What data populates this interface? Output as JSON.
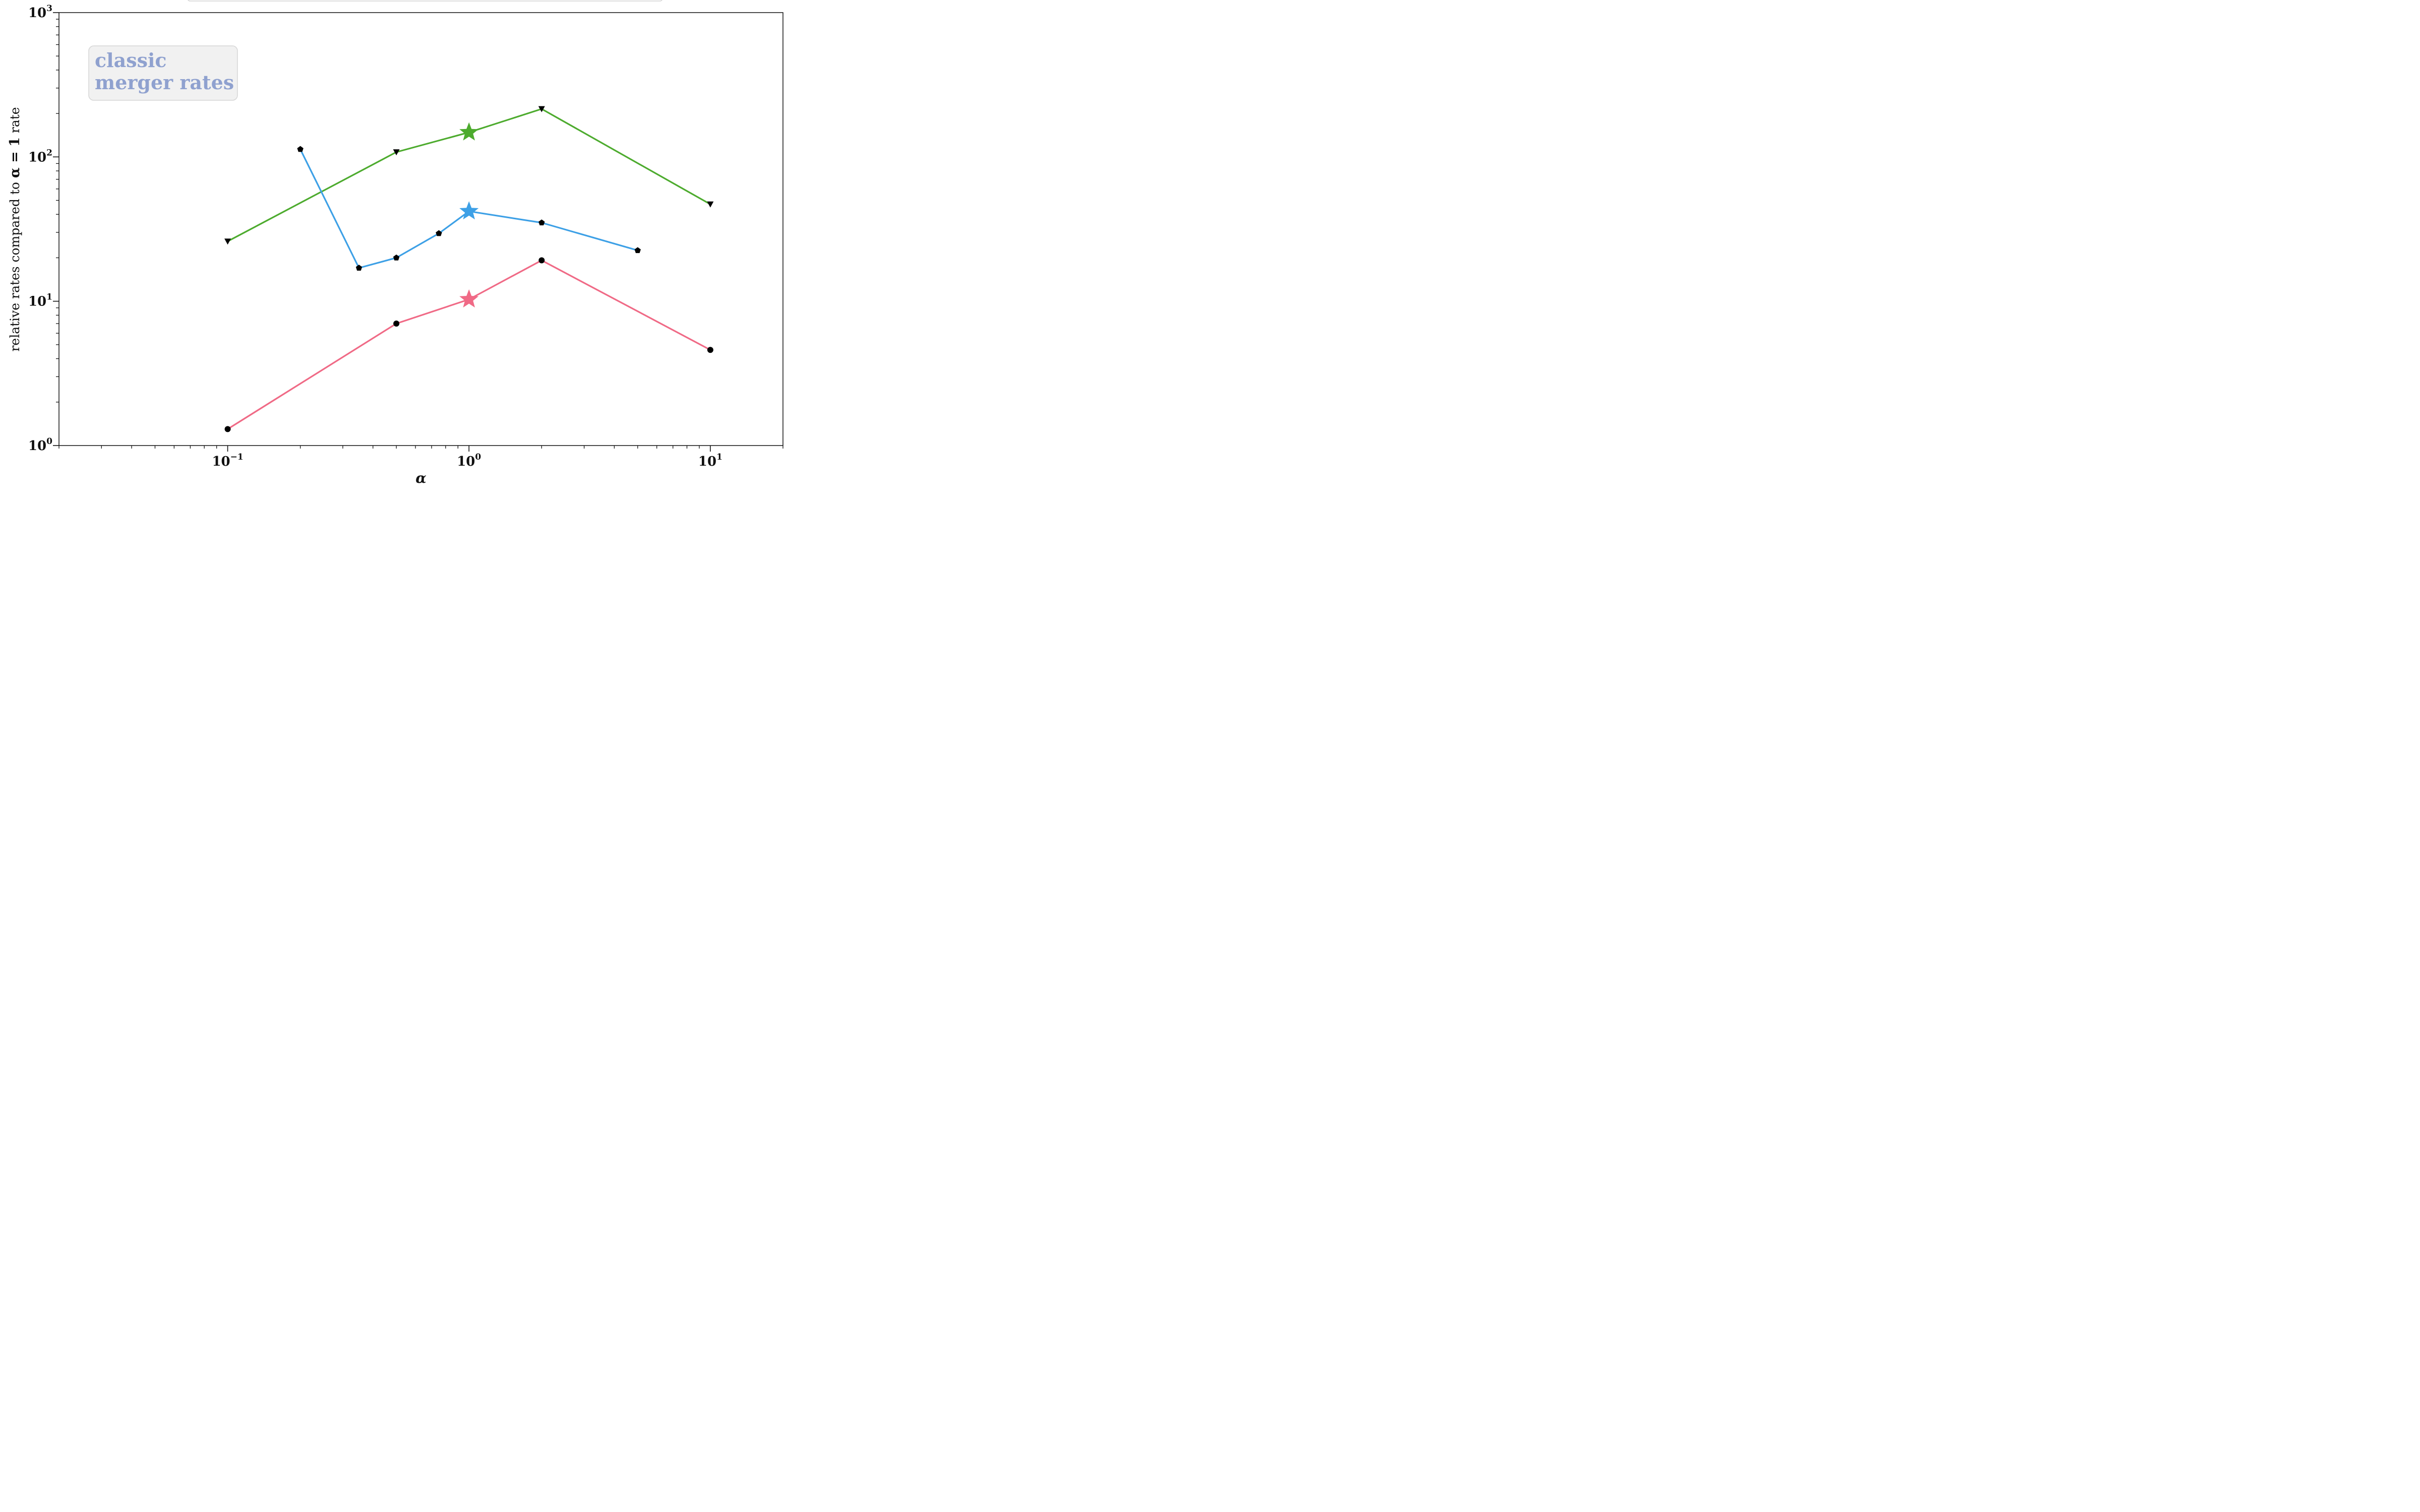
{
  "chart_data": {
    "type": "line",
    "xlabel": "α",
    "ylabel": {
      "prefix": "relative rates compared to ",
      "expr": "α = 1",
      "suffix": " rate"
    },
    "xscale": "log",
    "yscale": "log",
    "xlim": [
      0.02,
      20
    ],
    "ylim": [
      1,
      1000
    ],
    "xticks": [
      0.1,
      1,
      10
    ],
    "xtick_labels": [
      {
        "base": "10",
        "exp": "−1"
      },
      {
        "base": "10",
        "exp": "0"
      },
      {
        "base": "10",
        "exp": "1"
      }
    ],
    "yticks": [
      1,
      10,
      100,
      1000
    ],
    "ytick_labels": [
      {
        "base": "10",
        "exp": "0"
      },
      {
        "base": "10",
        "exp": "1"
      },
      {
        "base": "10",
        "exp": "2"
      },
      {
        "base": "10",
        "exp": "3"
      }
    ],
    "grid": false,
    "annotation": {
      "lines": [
        "classic",
        "merger rates"
      ]
    },
    "series": [
      {
        "color": "#4dab2e",
        "marker": "triangle-down",
        "x": [
          0.1,
          0.5,
          1,
          2,
          10
        ],
        "y": [
          26,
          108,
          148,
          215,
          47
        ],
        "star_at": 1
      },
      {
        "color": "#3da0e6",
        "marker": "pentagon",
        "x": [
          0.2,
          0.35,
          0.5,
          0.75,
          1,
          2,
          5
        ],
        "y": [
          113,
          17,
          20,
          29.5,
          42,
          35,
          22.5
        ],
        "star_at": 1
      },
      {
        "color": "#f06a86",
        "marker": "circle",
        "x": [
          0.1,
          0.5,
          1,
          2,
          10
        ],
        "y": [
          1.3,
          7,
          10.3,
          19.2,
          4.6
        ],
        "star_at": 1
      }
    ]
  }
}
